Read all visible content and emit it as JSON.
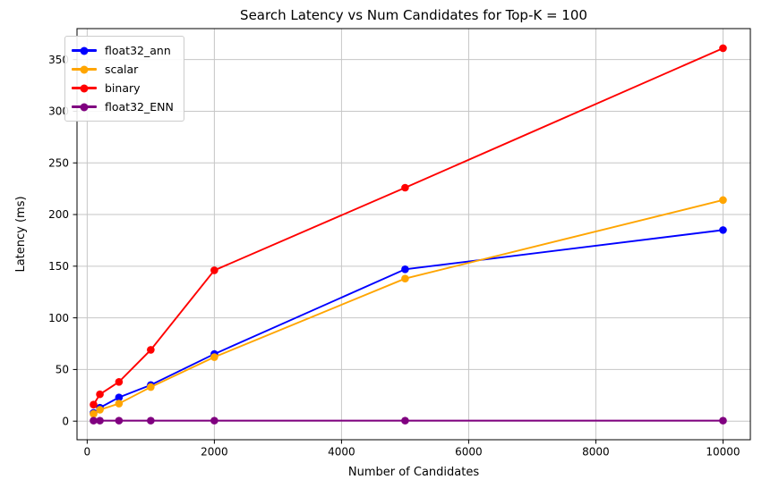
{
  "chart_data": {
    "type": "line",
    "title": "Search Latency vs Num Candidates for Top-K = 100",
    "xlabel": "Number of Candidates",
    "ylabel": "Latency (ms)",
    "x": [
      100,
      200,
      500,
      1000,
      2000,
      5000,
      10000
    ],
    "series": [
      {
        "name": "float32_ann",
        "color": "#0000ff",
        "values": [
          8,
          13,
          23,
          35,
          65,
          147,
          185
        ]
      },
      {
        "name": "scalar",
        "color": "#ffa500",
        "values": [
          7,
          11,
          17,
          33,
          62,
          138,
          214
        ]
      },
      {
        "name": "binary",
        "color": "#ff0000",
        "values": [
          16,
          26,
          38,
          69,
          146,
          226,
          361
        ]
      },
      {
        "name": "float32_ENN",
        "color": "#800080",
        "values": [
          0.5,
          0.5,
          0.5,
          0.5,
          0.5,
          0.5,
          0.5
        ]
      }
    ],
    "xticks": [
      0,
      2000,
      4000,
      6000,
      8000,
      10000
    ],
    "yticks": [
      0,
      50,
      100,
      150,
      200,
      250,
      300,
      350
    ],
    "xlim": [
      -160,
      10430
    ],
    "ylim": [
      -18,
      380
    ],
    "grid": true,
    "grid_color": "#c6c6c6",
    "spine_color": "#000000",
    "legend_position": "upper left",
    "legend_labels": [
      "float32_ann",
      "scalar",
      "binary",
      "float32_ENN"
    ],
    "marker": "circle"
  }
}
